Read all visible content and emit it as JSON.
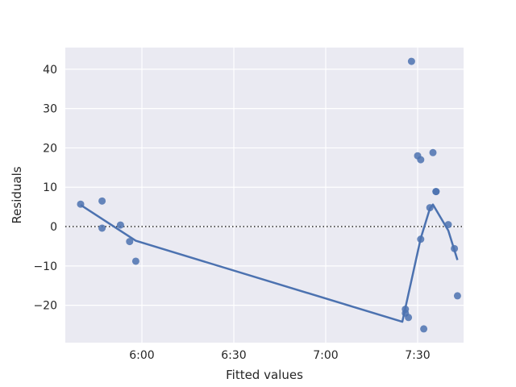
{
  "chart_data": {
    "type": "scatter",
    "title": "",
    "xlabel": "Fitted values",
    "ylabel": "Residuals",
    "x_unit": "time of day (H:MM)",
    "xlim": [
      "5:35",
      "7:45"
    ],
    "ylim": [
      -29.5,
      45.5
    ],
    "x_ticks": [
      "6:00",
      "6:30",
      "7:00",
      "7:30"
    ],
    "y_ticks": [
      -20,
      -10,
      0,
      10,
      20,
      30,
      40
    ],
    "y_tick_labels": [
      "−20",
      "−10",
      "0",
      "10",
      "20",
      "30",
      "40"
    ],
    "grid": true,
    "reference_line": {
      "y": 0,
      "style": "dotted"
    },
    "colors": {
      "points": "#4c72b0",
      "line": "#4c72b0",
      "background": "#eaeaf2",
      "grid": "#ffffff",
      "reference": "#262626"
    },
    "points": [
      {
        "x": "5:40",
        "y": 5.7
      },
      {
        "x": "5:47",
        "y": 6.5
      },
      {
        "x": "5:47",
        "y": -0.4
      },
      {
        "x": "5:53",
        "y": 0.4
      },
      {
        "x": "5:56",
        "y": -3.8
      },
      {
        "x": "5:58",
        "y": -8.8
      },
      {
        "x": "7:26",
        "y": -22.0
      },
      {
        "x": "7:26",
        "y": -21.0
      },
      {
        "x": "7:27",
        "y": -23.1
      },
      {
        "x": "7:28",
        "y": 42.0
      },
      {
        "x": "7:30",
        "y": 18.0
      },
      {
        "x": "7:31",
        "y": 17.0
      },
      {
        "x": "7:31",
        "y": -3.2
      },
      {
        "x": "7:32",
        "y": -26.0
      },
      {
        "x": "7:34",
        "y": 4.8
      },
      {
        "x": "7:35",
        "y": 18.8
      },
      {
        "x": "7:36",
        "y": 8.9
      },
      {
        "x": "7:36",
        "y": 8.9
      },
      {
        "x": "7:40",
        "y": 0.5
      },
      {
        "x": "7:42",
        "y": -5.6
      },
      {
        "x": "7:43",
        "y": -17.6
      }
    ],
    "lowess_line": [
      {
        "x": "5:40",
        "y": 5.5
      },
      {
        "x": "5:58",
        "y": -3.6
      },
      {
        "x": "7:25",
        "y": -24.2
      },
      {
        "x": "7:31",
        "y": -3.0
      },
      {
        "x": "7:34",
        "y": 4.6
      },
      {
        "x": "7:35",
        "y": 5.6
      },
      {
        "x": "7:40",
        "y": -1.0
      },
      {
        "x": "7:43",
        "y": -8.5
      }
    ]
  }
}
